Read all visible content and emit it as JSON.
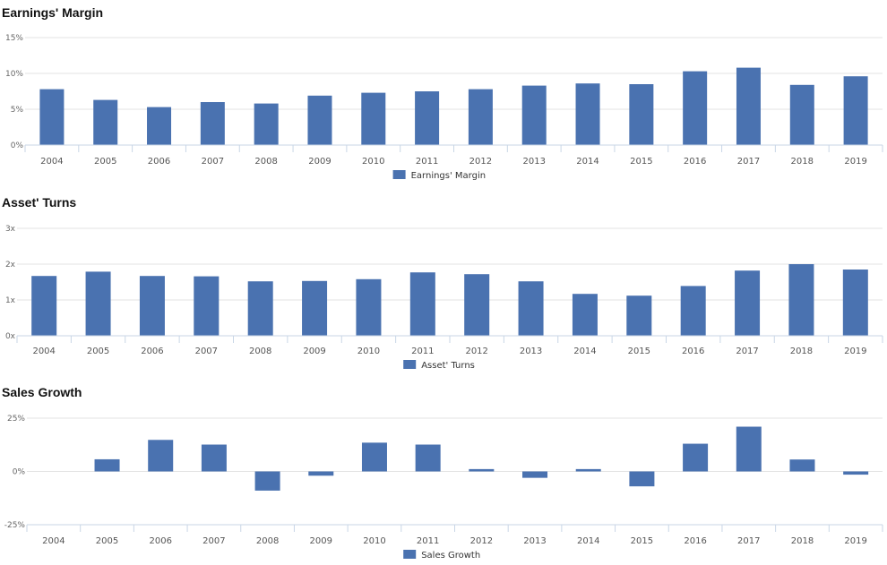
{
  "chart_data": [
    {
      "type": "bar",
      "title": "Earnings' Margin",
      "categories": [
        "2004",
        "2005",
        "2006",
        "2007",
        "2008",
        "2009",
        "2010",
        "2011",
        "2012",
        "2013",
        "2014",
        "2015",
        "2016",
        "2017",
        "2018",
        "2019"
      ],
      "series": [
        {
          "name": "Earnings' Margin",
          "values": [
            7.8,
            6.3,
            5.3,
            6.0,
            5.8,
            6.9,
            7.3,
            7.5,
            7.8,
            8.3,
            8.6,
            8.5,
            10.3,
            10.8,
            8.4,
            9.6
          ]
        }
      ],
      "ylim": [
        0,
        15
      ],
      "ticks": [
        {
          "v": 0,
          "label": "0%"
        },
        {
          "v": 5,
          "label": "5%"
        },
        {
          "v": 10,
          "label": "10%"
        },
        {
          "v": 15,
          "label": "15%"
        }
      ],
      "grid": true,
      "legend": "bottom-center",
      "color": "#4a72b0"
    },
    {
      "type": "bar",
      "title": "Asset' Turns",
      "categories": [
        "2004",
        "2005",
        "2006",
        "2007",
        "2008",
        "2009",
        "2010",
        "2011",
        "2012",
        "2013",
        "2014",
        "2015",
        "2016",
        "2017",
        "2018",
        "2019"
      ],
      "series": [
        {
          "name": "Asset' Turns",
          "values": [
            1.67,
            1.79,
            1.67,
            1.66,
            1.52,
            1.53,
            1.58,
            1.77,
            1.72,
            1.52,
            1.17,
            1.12,
            1.39,
            1.82,
            2.0,
            1.85
          ]
        }
      ],
      "ylim": [
        0,
        3
      ],
      "ticks": [
        {
          "v": 0,
          "label": "0x"
        },
        {
          "v": 1,
          "label": "1x"
        },
        {
          "v": 2,
          "label": "2x"
        },
        {
          "v": 3,
          "label": "3x"
        }
      ],
      "grid": true,
      "legend": "bottom-center",
      "color": "#4a72b0"
    },
    {
      "type": "bar",
      "title": "Sales Growth",
      "categories": [
        "2004",
        "2005",
        "2006",
        "2007",
        "2008",
        "2009",
        "2010",
        "2011",
        "2012",
        "2013",
        "2014",
        "2015",
        "2016",
        "2017",
        "2018",
        "2019"
      ],
      "series": [
        {
          "name": "Sales Growth",
          "values": [
            0,
            5.7,
            14.8,
            12.6,
            -9.0,
            -2.0,
            13.5,
            12.6,
            1.1,
            -3.0,
            1.1,
            -7.0,
            13.0,
            21.0,
            5.6,
            -1.5
          ]
        }
      ],
      "ylim": [
        -25,
        25
      ],
      "ticks": [
        {
          "v": -25,
          "label": "-25%"
        },
        {
          "v": 0,
          "label": "0%"
        },
        {
          "v": 25,
          "label": "25%"
        }
      ],
      "grid": true,
      "legend": "bottom-center",
      "color": "#4a72b0"
    }
  ]
}
